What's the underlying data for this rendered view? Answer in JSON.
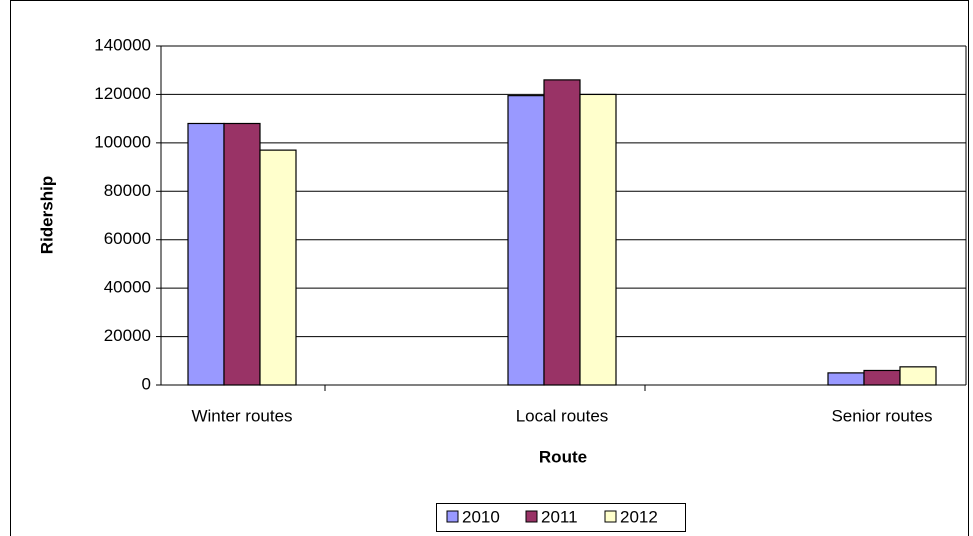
{
  "chart_data": {
    "type": "bar",
    "x_label": "Route",
    "y_label": "Ridership",
    "categories": [
      "Winter routes",
      "Local routes",
      "Senior routes"
    ],
    "series": [
      {
        "name": "2010",
        "color": "#9999ff",
        "values": [
          108000,
          119500,
          5000
        ]
      },
      {
        "name": "2011",
        "color": "#993366",
        "values": [
          108000,
          126000,
          6000
        ]
      },
      {
        "name": "2012",
        "color": "#ffffcc",
        "values": [
          97000,
          120000,
          7500
        ]
      }
    ],
    "ylim": [
      0,
      140000
    ],
    "yticks": [
      0,
      20000,
      40000,
      60000,
      80000,
      100000,
      120000,
      140000
    ],
    "grid": true,
    "legend": "bottom"
  }
}
